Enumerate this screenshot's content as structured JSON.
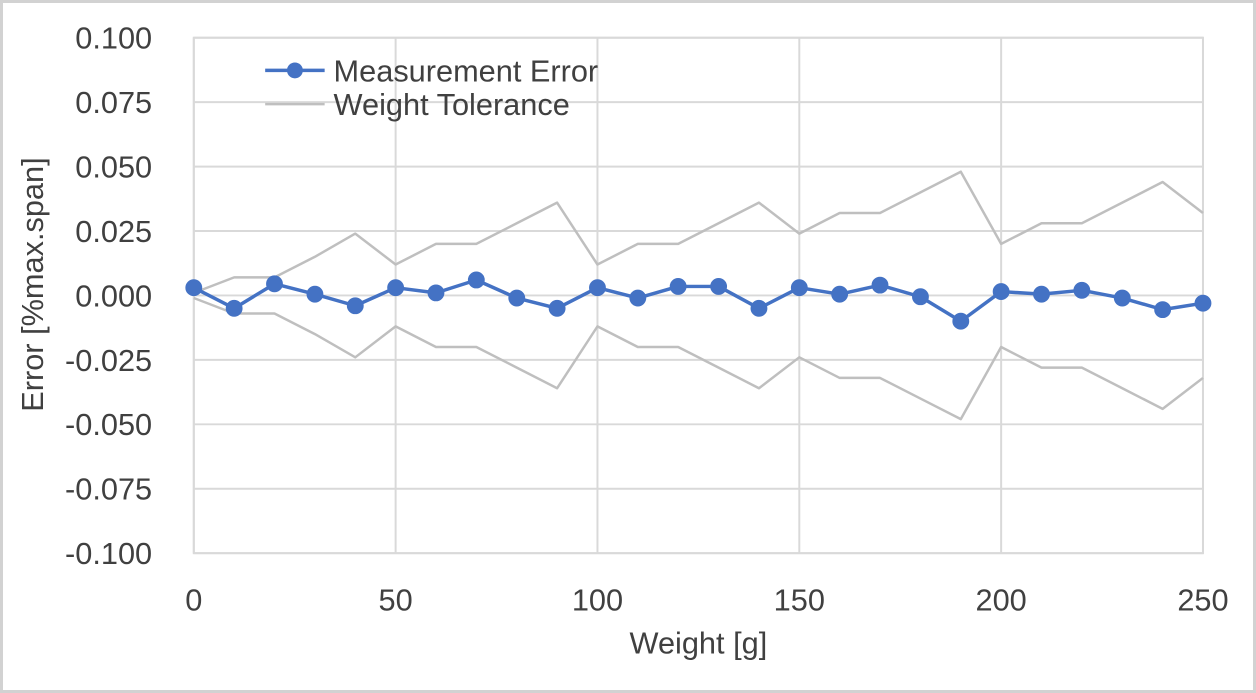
{
  "chart_data": {
    "type": "line",
    "title": "",
    "xlabel": "Weight [g]",
    "ylabel": "Error [%max.span]",
    "xlim": [
      0,
      250
    ],
    "ylim": [
      -0.1,
      0.1
    ],
    "grid": true,
    "legend_position": "inside-top-left",
    "x": [
      0,
      10,
      20,
      30,
      40,
      50,
      60,
      70,
      80,
      90,
      100,
      110,
      120,
      130,
      140,
      150,
      160,
      170,
      180,
      190,
      200,
      210,
      220,
      230,
      240,
      250
    ],
    "series": [
      {
        "name": "Measurement Error",
        "color": "#4472C4",
        "marker": "circle",
        "show_in_legend": true,
        "values": [
          0.003,
          -0.005,
          0.0045,
          0.0005,
          -0.004,
          0.003,
          0.001,
          0.006,
          -0.001,
          -0.005,
          0.003,
          -0.001,
          0.0035,
          0.0035,
          -0.005,
          0.003,
          0.0005,
          0.004,
          -0.0005,
          -0.01,
          0.0015,
          0.0005,
          0.002,
          -0.001,
          -0.0055,
          -0.003
        ]
      },
      {
        "name": "Weight Tolerance",
        "color": "#BFBFBF",
        "marker": "none",
        "show_in_legend": true,
        "values": [
          0.001,
          0.007,
          0.007,
          0.015,
          0.024,
          0.012,
          0.02,
          0.02,
          0.028,
          0.036,
          0.012,
          0.02,
          0.02,
          0.028,
          0.036,
          0.024,
          0.032,
          0.032,
          0.04,
          0.048,
          0.02,
          0.028,
          0.028,
          0.036,
          0.044,
          0.032
        ]
      },
      {
        "name": "Weight Tolerance (lower bound)",
        "color": "#BFBFBF",
        "marker": "none",
        "show_in_legend": false,
        "values": [
          -0.001,
          -0.007,
          -0.007,
          -0.015,
          -0.024,
          -0.012,
          -0.02,
          -0.02,
          -0.028,
          -0.036,
          -0.012,
          -0.02,
          -0.02,
          -0.028,
          -0.036,
          -0.024,
          -0.032,
          -0.032,
          -0.04,
          -0.048,
          -0.02,
          -0.028,
          -0.028,
          -0.036,
          -0.044,
          -0.032
        ]
      }
    ],
    "xticks": {
      "values": [
        0,
        50,
        100,
        150,
        200,
        250
      ],
      "labels": [
        "0",
        "50",
        "100",
        "150",
        "200",
        "250"
      ]
    },
    "yticks": {
      "values": [
        0.1,
        0.075,
        0.05,
        0.025,
        0.0,
        -0.025,
        -0.05,
        -0.075,
        -0.1
      ],
      "labels": [
        "0.100",
        "0.075",
        "0.050",
        "0.025",
        "0.000",
        "-0.025",
        "-0.050",
        "-0.075",
        "-0.100"
      ]
    },
    "legend": [
      "Measurement Error",
      "Weight Tolerance"
    ]
  },
  "colors": {
    "accent_blue": "#4472C4",
    "tolerance_gray": "#BFBFBF",
    "gridline": "#D9D9D9",
    "text": "#404040",
    "background": "#FFFFFF",
    "outer_border": "#D2D2D2"
  }
}
